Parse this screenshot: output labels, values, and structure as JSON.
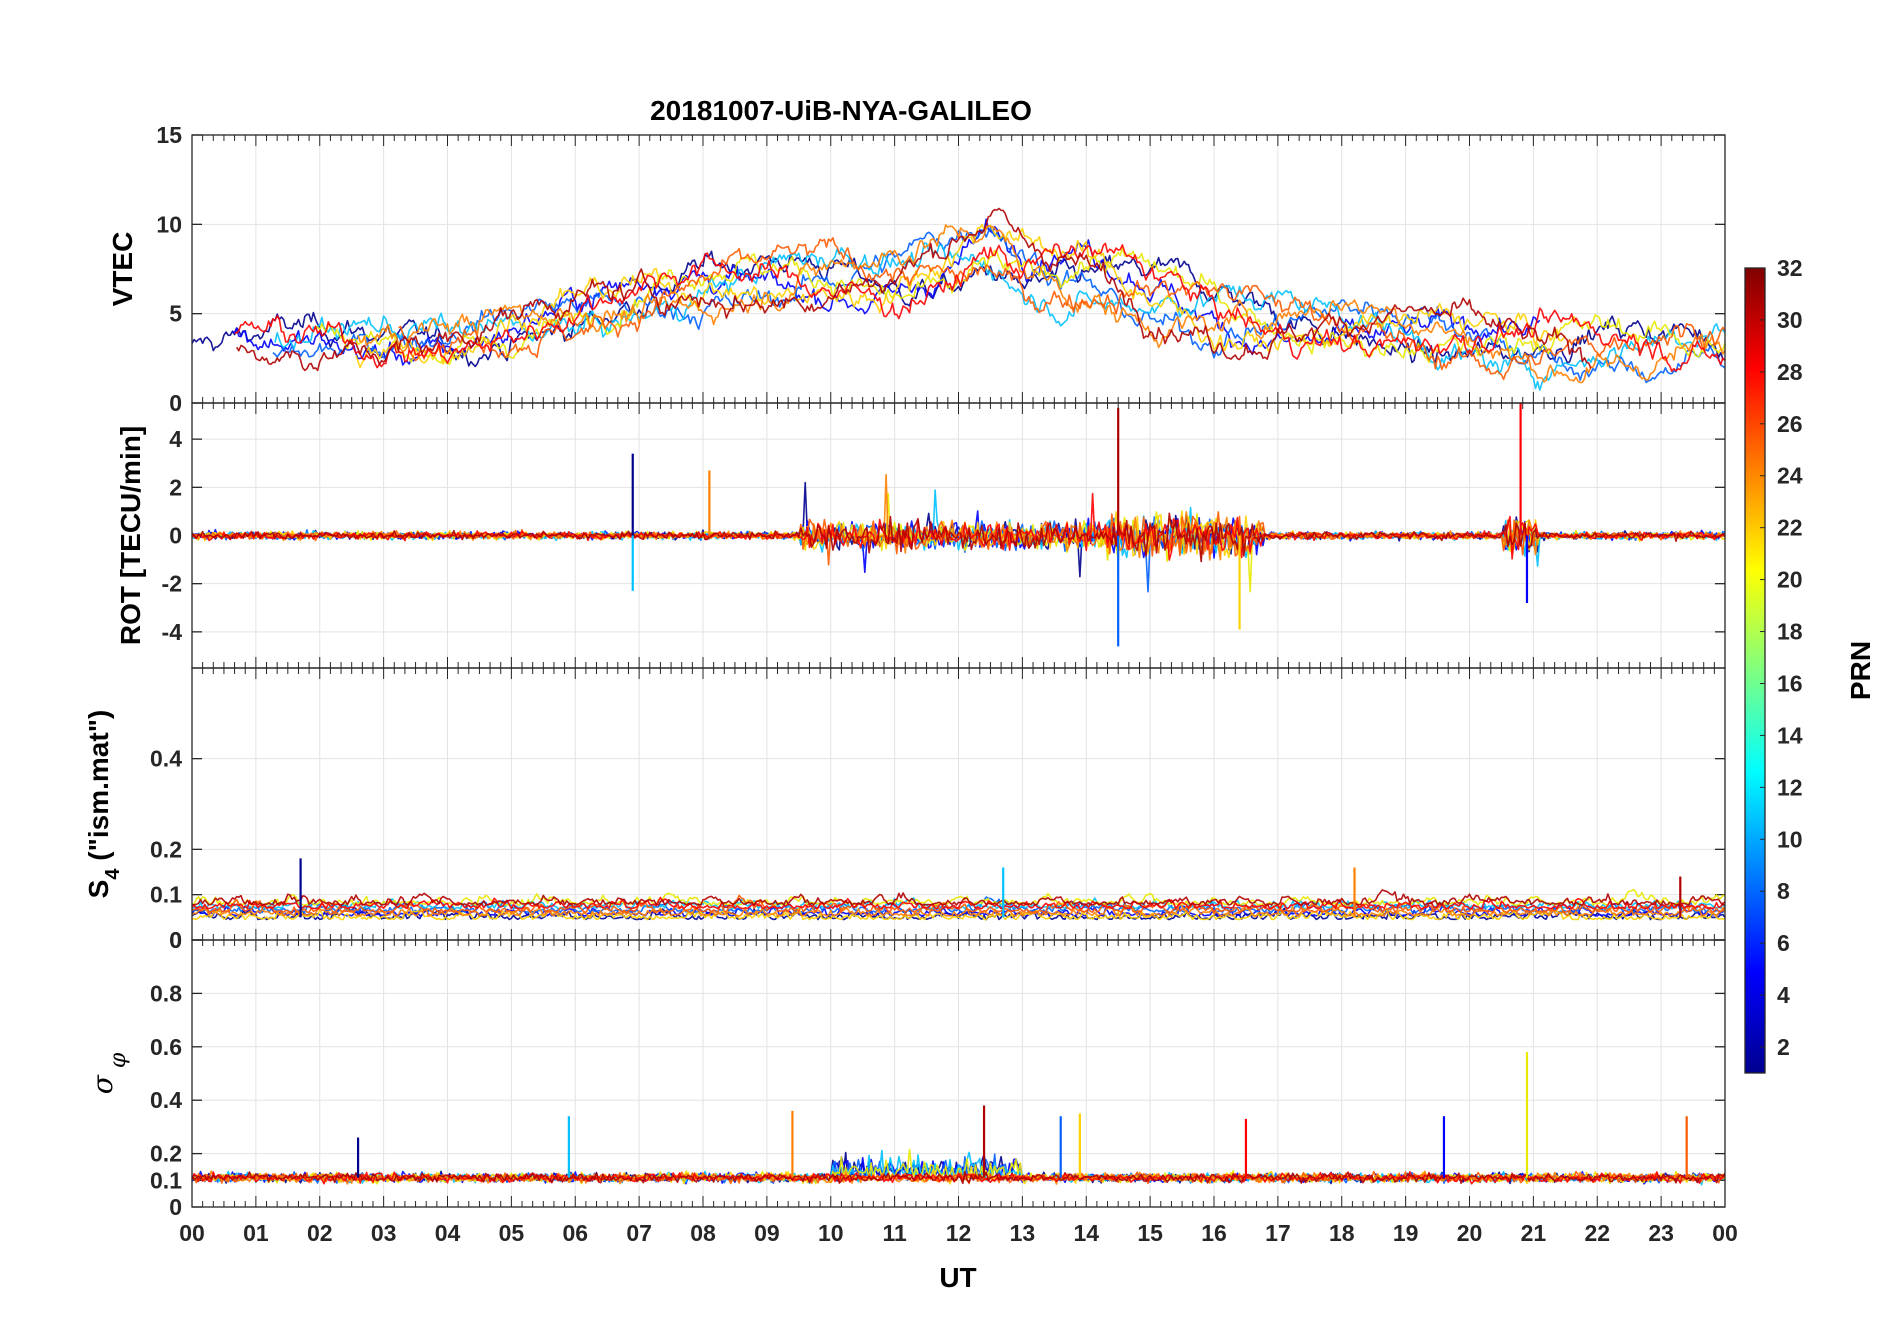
{
  "chart_data": {
    "type": "line",
    "title": "20181007-UiB-NYA-GALILEO",
    "xlabel": "UT",
    "x_ticks": [
      "00",
      "01",
      "02",
      "03",
      "04",
      "05",
      "06",
      "07",
      "08",
      "09",
      "10",
      "11",
      "12",
      "13",
      "14",
      "15",
      "16",
      "17",
      "18",
      "19",
      "20",
      "21",
      "22",
      "23",
      "00"
    ],
    "xlim_hours": [
      0,
      24
    ],
    "grid": true,
    "colorbar": {
      "label": "PRN",
      "range": [
        1,
        32
      ],
      "ticks": [
        "2",
        "4",
        "6",
        "8",
        "10",
        "12",
        "14",
        "16",
        "18",
        "20",
        "22",
        "24",
        "26",
        "28",
        "30",
        "32"
      ],
      "colormap": "jet",
      "placement": "right"
    },
    "series_colors": [
      "#00008f",
      "#0000ff",
      "#0060ff",
      "#00c0ff",
      "#e8e800",
      "#ffd000",
      "#ff8000",
      "#ff5a00",
      "#ff0000",
      "#b00000"
    ],
    "panels": [
      {
        "id": "vtec",
        "ylabel": "VTEC",
        "ylim": [
          0,
          15
        ],
        "y_ticks": [
          "0",
          "5",
          "10",
          "15"
        ],
        "typical_range": [
          1.5,
          11
        ],
        "envelope": {
          "hours": [
            0,
            2,
            4,
            6,
            8,
            10,
            11,
            12,
            12.5,
            13,
            14,
            15,
            16,
            17,
            18,
            19,
            20,
            21,
            22,
            23,
            24
          ],
          "mean": [
            3,
            3.5,
            3.5,
            5,
            6.5,
            7.2,
            7,
            8,
            9,
            7.5,
            7,
            6,
            5,
            4.5,
            4.5,
            4,
            3.5,
            3,
            3,
            3,
            3
          ],
          "spread": [
            1,
            1,
            1,
            1.2,
            1.5,
            1.5,
            1.8,
            2,
            2,
            1.8,
            2,
            2,
            1.8,
            1.5,
            1.5,
            1.5,
            1.5,
            1.5,
            1.5,
            1.5,
            1.5
          ]
        }
      },
      {
        "id": "rot",
        "ylabel": "ROT [TECU/min]",
        "ylim": [
          -5.5,
          5.5
        ],
        "y_ticks": [
          "-4",
          "-2",
          "0",
          "2",
          "4"
        ],
        "typical_range": [
          -4.6,
          5.5
        ],
        "spikes": [
          {
            "hour": 6.9,
            "value": 3.4
          },
          {
            "hour": 6.9,
            "value": -2.3
          },
          {
            "hour": 8.1,
            "value": 2.7
          },
          {
            "hour": 14.5,
            "value": 5.3
          },
          {
            "hour": 14.5,
            "value": -4.6
          },
          {
            "hour": 16.4,
            "value": -3.9
          },
          {
            "hour": 20.8,
            "value": 5.5
          },
          {
            "hour": 20.9,
            "value": -2.8
          }
        ]
      },
      {
        "id": "s4",
        "ylabel": "S_4 (\"ism.mat\")",
        "ylim": [
          0,
          0.6
        ],
        "y_ticks": [
          "0",
          "0",
          "0.1",
          "0.2",
          "0.4"
        ],
        "typical_range": [
          0.02,
          0.19
        ],
        "peaks": [
          {
            "hour": 1.7,
            "value": 0.18
          },
          {
            "hour": 12.7,
            "value": 0.16
          },
          {
            "hour": 18.2,
            "value": 0.16
          },
          {
            "hour": 23.3,
            "value": 0.14
          }
        ]
      },
      {
        "id": "sigma_phi",
        "ylabel": "σ φ",
        "ylim": [
          0,
          1
        ],
        "y_ticks": [
          "0",
          "0.1",
          "0.2",
          "0.4",
          "0.6",
          "0.8"
        ],
        "typical_range": [
          0.08,
          0.58
        ],
        "peaks": [
          {
            "hour": 2.6,
            "value": 0.26
          },
          {
            "hour": 5.9,
            "value": 0.34
          },
          {
            "hour": 9.4,
            "value": 0.36
          },
          {
            "hour": 12.4,
            "value": 0.38
          },
          {
            "hour": 13.6,
            "value": 0.34
          },
          {
            "hour": 13.9,
            "value": 0.35
          },
          {
            "hour": 16.5,
            "value": 0.33
          },
          {
            "hour": 19.6,
            "value": 0.34
          },
          {
            "hour": 20.9,
            "value": 0.58
          },
          {
            "hour": 23.4,
            "value": 0.34
          }
        ]
      }
    ]
  }
}
